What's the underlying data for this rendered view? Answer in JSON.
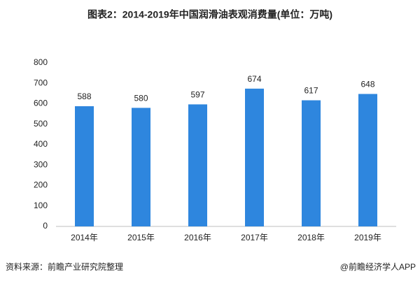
{
  "chart_data": {
    "type": "bar",
    "title": "图表2：2014-2019年中国润滑油表观消费量(单位：万吨)",
    "categories": [
      "2014年",
      "2015年",
      "2016年",
      "2017年",
      "2018年",
      "2019年"
    ],
    "values": [
      588,
      580,
      597,
      674,
      617,
      648
    ],
    "color": "#2e86de",
    "ylim": [
      0,
      800
    ],
    "yticks": [
      0,
      100,
      200,
      300,
      400,
      500,
      600,
      700,
      800
    ],
    "grid": false,
    "source": "资料来源：前瞻产业研究院整理",
    "credit": "@前瞻经济学人APP"
  }
}
